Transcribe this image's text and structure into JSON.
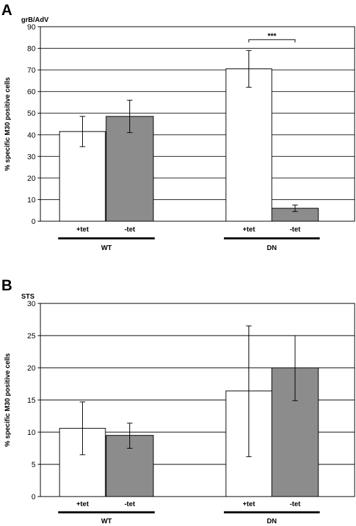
{
  "chart_data": [
    {
      "type": "bar",
      "panel_label": "A",
      "subtitle": "grB/AdV",
      "ylabel": "% specific M30 positive cells",
      "ylim": [
        0,
        90
      ],
      "ytick_step": 10,
      "grid": true,
      "groups": [
        {
          "name": "WT",
          "bars": [
            {
              "label": "+tet",
              "value": 41.5,
              "err_low": 34.5,
              "err_high": 48.5,
              "color": "#ffffff"
            },
            {
              "label": "-tet",
              "value": 48.5,
              "err_low": 41.0,
              "err_high": 56.0,
              "color": "#8c8c8c"
            }
          ]
        },
        {
          "name": "DN",
          "bars": [
            {
              "label": "+tet",
              "value": 70.5,
              "err_low": 62.0,
              "err_high": 79.0,
              "color": "#ffffff"
            },
            {
              "label": "-tet",
              "value": 6.0,
              "err_low": 4.5,
              "err_high": 7.5,
              "color": "#8c8c8c"
            }
          ]
        }
      ],
      "significance": {
        "text": "***",
        "group": 1,
        "from_bar": 0,
        "to_bar": 1,
        "y": 84
      }
    },
    {
      "type": "bar",
      "panel_label": "B",
      "subtitle": "STS",
      "ylabel": "% specific M30 positive cells",
      "ylim": [
        0,
        30
      ],
      "ytick_step": 5,
      "grid": true,
      "groups": [
        {
          "name": "WT",
          "bars": [
            {
              "label": "+tet",
              "value": 10.6,
              "err_low": 6.5,
              "err_high": 14.7,
              "color": "#ffffff"
            },
            {
              "label": "-tet",
              "value": 9.5,
              "err_low": 7.5,
              "err_high": 11.4,
              "color": "#8c8c8c"
            }
          ]
        },
        {
          "name": "DN",
          "bars": [
            {
              "label": "+tet",
              "value": 16.4,
              "err_low": 6.2,
              "err_high": 26.5,
              "color": "#ffffff"
            },
            {
              "label": "-tet",
              "value": 20.0,
              "err_low": 14.9,
              "err_high": 25.0,
              "color": "#8c8c8c"
            }
          ]
        }
      ]
    }
  ]
}
